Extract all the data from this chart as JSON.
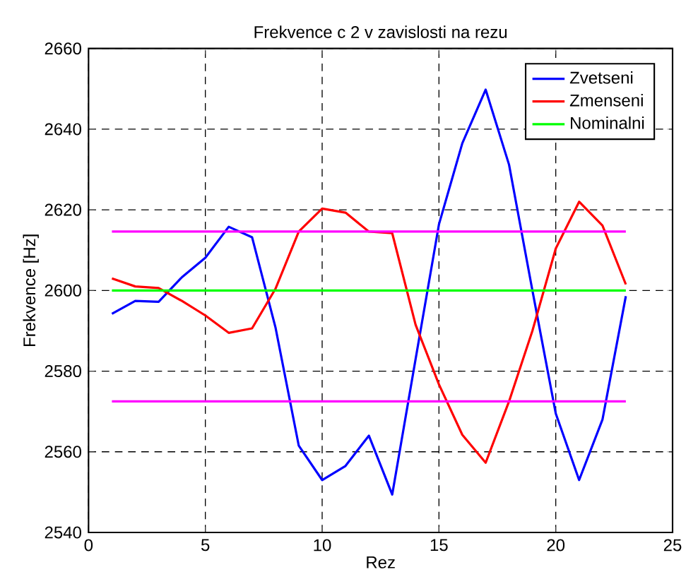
{
  "chart_data": {
    "type": "line",
    "title": "Frekvence c 2  v zavislosti na rezu",
    "xlabel": "Rez",
    "ylabel": "Frekvence [Hz]",
    "x": [
      1,
      2,
      3,
      4,
      5,
      6,
      7,
      8,
      9,
      10,
      11,
      12,
      13,
      14,
      15,
      16,
      17,
      18,
      19,
      20,
      21,
      22,
      23
    ],
    "series": [
      {
        "name": "Zvetseni",
        "color": "#0000ff",
        "values": [
          2594.2,
          2597.4,
          2597.2,
          2603.3,
          2608.1,
          2615.8,
          2613.2,
          2590.9,
          2561.5,
          2553,
          2556.5,
          2564,
          2549.4,
          2583,
          2616.4,
          2636.5,
          2649.8,
          2631.2,
          2600,
          2569.5,
          2553,
          2568,
          2598.6
        ]
      },
      {
        "name": "Zmenseni",
        "color": "#ff0000",
        "values": [
          2603,
          2601,
          2600.6,
          2597.4,
          2593.8,
          2589.5,
          2590.6,
          2600.4,
          2614.6,
          2620.3,
          2619.3,
          2614.6,
          2614.2,
          2591.5,
          2576.7,
          2564.2,
          2557.3,
          2572.5,
          2590,
          2610.4,
          2622,
          2616.1,
          2601.5
        ]
      },
      {
        "name": "Nominalni",
        "color": "#00ff00",
        "values": [
          2600,
          2600,
          2600,
          2600,
          2600,
          2600,
          2600,
          2600,
          2600,
          2600,
          2600,
          2600,
          2600,
          2600,
          2600,
          2600,
          2600,
          2600,
          2600,
          2600,
          2600,
          2600,
          2600
        ]
      },
      {
        "color": "#ff00ff",
        "values": [
          2614.6,
          2614.6,
          2614.6,
          2614.6,
          2614.6,
          2614.6,
          2614.6,
          2614.6,
          2614.6,
          2614.6,
          2614.6,
          2614.6,
          2614.6,
          2614.6,
          2614.6,
          2614.6,
          2614.6,
          2614.6,
          2614.6,
          2614.6,
          2614.6,
          2614.6,
          2614.6
        ]
      },
      {
        "color": "#ff00ff",
        "values": [
          2572.5,
          2572.5,
          2572.5,
          2572.5,
          2572.5,
          2572.5,
          2572.5,
          2572.5,
          2572.5,
          2572.5,
          2572.5,
          2572.5,
          2572.5,
          2572.5,
          2572.5,
          2572.5,
          2572.5,
          2572.5,
          2572.5,
          2572.5,
          2572.5,
          2572.5,
          2572.5
        ]
      }
    ],
    "xlim": [
      0,
      25
    ],
    "ylim": [
      2540,
      2660
    ],
    "xticks": [
      0,
      5,
      10,
      15,
      20,
      25
    ],
    "yticks": [
      2540,
      2560,
      2580,
      2600,
      2620,
      2640,
      2660
    ],
    "grid": true,
    "legend": "top right",
    "marker": "none",
    "line_style": "solid"
  }
}
